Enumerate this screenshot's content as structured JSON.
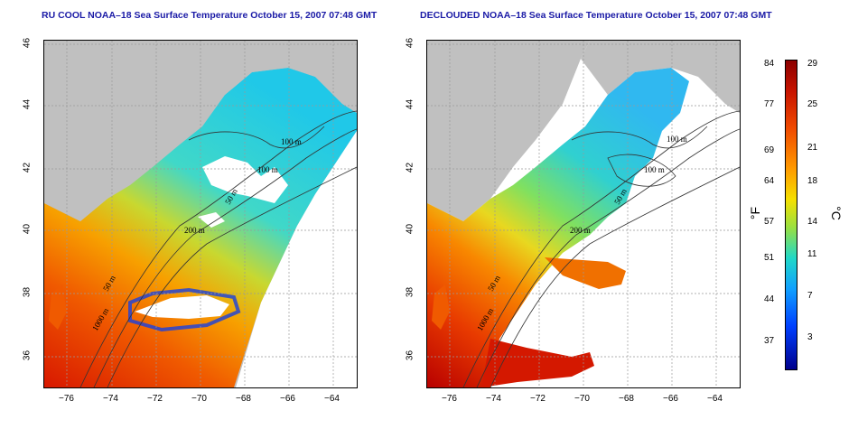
{
  "left_panel": {
    "title": "RU COOL NOAA–18 Sea Surface Temperature October 15, 2007 07:48 GMT",
    "contour_labels": [
      "100 m",
      "100 m",
      "50 m",
      "200 m",
      "50 m",
      "1000 m"
    ]
  },
  "right_panel": {
    "title": "DECLOUDED NOAA–18 Sea Surface Temperature October 15, 2007 07:48 GMT",
    "contour_labels": [
      "100 m",
      "100 m",
      "50 m",
      "200 m",
      "50 m",
      "1000 m"
    ]
  },
  "axes": {
    "x_ticks": [
      "−76",
      "−74",
      "−72",
      "−70",
      "−68",
      "−66",
      "−64"
    ],
    "y_ticks": [
      "46",
      "44",
      "42",
      "40",
      "38",
      "36"
    ]
  },
  "colorbar": {
    "fahrenheit_label": "°F",
    "celsius_label": "°C",
    "fahrenheit_ticks": [
      "84",
      "77",
      "69",
      "64",
      "57",
      "51",
      "44",
      "37"
    ],
    "celsius_ticks": [
      "29",
      "25",
      "21",
      "18",
      "14",
      "11",
      "7",
      "3"
    ]
  },
  "colors": {
    "land": "#c0c0c0",
    "no_data": "#ffffff",
    "title": "#1a1aa6"
  }
}
